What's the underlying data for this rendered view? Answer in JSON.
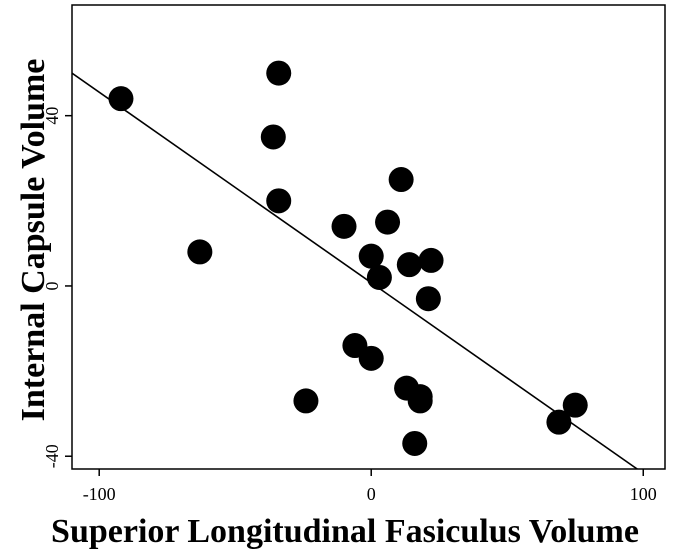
{
  "chart_data": {
    "type": "scatter",
    "title": "",
    "xlabel": "Superior Longitudinal Fasiculus Volume",
    "ylabel": "Internal Capsule Volume",
    "xlim": [
      -110,
      108
    ],
    "ylim": [
      -43,
      66
    ],
    "xticks": [
      -100,
      0,
      100
    ],
    "yticks": [
      -40,
      0,
      40
    ],
    "xtick_labels": [
      "-100",
      "0",
      "100"
    ],
    "ytick_labels": [
      "-40",
      "0",
      "40"
    ],
    "grid": false,
    "legend": "none",
    "marker_color": "#000000",
    "line_color": "#000000",
    "points": [
      {
        "x": -92,
        "y": 44
      },
      {
        "x": -34,
        "y": 50
      },
      {
        "x": -36,
        "y": 35
      },
      {
        "x": -34,
        "y": 20
      },
      {
        "x": -63,
        "y": 8
      },
      {
        "x": 11,
        "y": 25
      },
      {
        "x": -10,
        "y": 14
      },
      {
        "x": 6,
        "y": 15
      },
      {
        "x": 0,
        "y": 7
      },
      {
        "x": 3,
        "y": 2
      },
      {
        "x": 14,
        "y": 5
      },
      {
        "x": 22,
        "y": 6
      },
      {
        "x": 21,
        "y": -3
      },
      {
        "x": -6,
        "y": -14
      },
      {
        "x": 0,
        "y": -17
      },
      {
        "x": 13,
        "y": -24
      },
      {
        "x": 18,
        "y": -26
      },
      {
        "x": 18,
        "y": -27
      },
      {
        "x": -24,
        "y": -27
      },
      {
        "x": 16,
        "y": -37
      },
      {
        "x": 69,
        "y": -32
      },
      {
        "x": 75,
        "y": -28
      }
    ],
    "fit_line": {
      "x": [
        -110,
        100
      ],
      "y": [
        50,
        -44
      ]
    }
  }
}
